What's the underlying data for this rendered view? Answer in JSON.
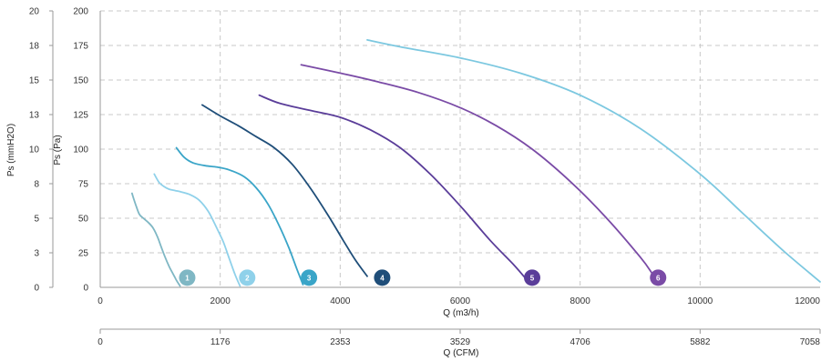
{
  "chart_data": {
    "type": "line",
    "xlabel": "Q (m3/h)",
    "xlabel_secondary": "Q (CFM)",
    "ylabel": "Ps (Pa)",
    "ylabel_secondary": "Ps (mmH2O)",
    "xlim": [
      0,
      12000
    ],
    "ylim": [
      0,
      200
    ],
    "x_ticks": [
      "0",
      "2000",
      "4000",
      "6000",
      "8000",
      "10000",
      "12000"
    ],
    "x_ticks_secondary": [
      "0",
      "1176",
      "2353",
      "3529",
      "4706",
      "5882",
      "7058"
    ],
    "y_ticks": [
      "0",
      "25",
      "50",
      "75",
      "100",
      "125",
      "150",
      "175",
      "200"
    ],
    "y_ticks_secondary": [
      "0",
      "3",
      "5",
      "8",
      "10",
      "13",
      "15",
      "18",
      "20"
    ],
    "grid": true,
    "series": [
      {
        "name": "1",
        "color": "#7fb7c4",
        "badge_x": 1450,
        "badge_y": 7,
        "x": [
          530,
          590,
          650,
          720,
          800,
          880,
          950,
          1010,
          1080,
          1150,
          1210,
          1260,
          1300,
          1330
        ],
        "y": [
          68,
          60,
          53,
          50,
          47,
          43,
          37,
          30,
          22,
          15,
          10,
          6,
          3,
          1
        ]
      },
      {
        "name": "2",
        "color": "#8fd1ea",
        "badge_x": 2450,
        "badge_y": 7,
        "x": [
          900,
          980,
          1060,
          1150,
          1250,
          1350,
          1500,
          1650,
          1800,
          1930,
          2050,
          2150,
          2250,
          2330
        ],
        "y": [
          82,
          76,
          73,
          71,
          70,
          69,
          67,
          63,
          55,
          44,
          33,
          21,
          9,
          1
        ]
      },
      {
        "name": "3",
        "color": "#3aa5c8",
        "badge_x": 3480,
        "badge_y": 7,
        "x": [
          1270,
          1400,
          1550,
          1750,
          1950,
          2150,
          2400,
          2600,
          2800,
          3000,
          3150,
          3280,
          3380
        ],
        "y": [
          101,
          94,
          90,
          88,
          87,
          85,
          80,
          72,
          60,
          43,
          28,
          13,
          2
        ]
      },
      {
        "name": "4",
        "color": "#1f4e79",
        "badge_x": 4700,
        "badge_y": 7,
        "x": [
          1700,
          2000,
          2300,
          2600,
          2900,
          3200,
          3500,
          3800,
          4050,
          4250,
          4450
        ],
        "y": [
          132,
          124,
          117,
          109,
          101,
          89,
          72,
          52,
          34,
          20,
          8
        ]
      },
      {
        "name": "5",
        "color": "#5a3d99",
        "badge_x": 7200,
        "badge_y": 7,
        "x": [
          2650,
          3000,
          3500,
          4000,
          4500,
          5000,
          5500,
          6000,
          6500,
          6900,
          7100
        ],
        "y": [
          139,
          133,
          128,
          123,
          114,
          101,
          82,
          59,
          34,
          16,
          6
        ]
      },
      {
        "name": "6",
        "color": "#7a4ba6",
        "badge_x": 9300,
        "badge_y": 7,
        "x": [
          3350,
          4000,
          4600,
          5300,
          6000,
          6600,
          7200,
          7800,
          8400,
          9000,
          9200
        ],
        "y": [
          161,
          155,
          149,
          141,
          130,
          117,
          100,
          78,
          52,
          22,
          10
        ]
      },
      {
        "name": "",
        "color": "#7cc8e0",
        "x": [
          4450,
          5000,
          6000,
          7000,
          8000,
          9000,
          10000,
          10700,
          11400,
          12000
        ],
        "y": [
          179,
          174,
          166,
          155,
          139,
          115,
          82,
          54,
          26,
          4
        ]
      }
    ]
  }
}
